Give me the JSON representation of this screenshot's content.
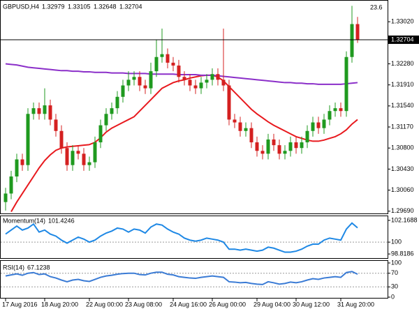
{
  "chart_data": [
    {
      "type": "candlestick",
      "title": "GBPUSD,H4",
      "annotation": "23.6",
      "categories": [
        "17 Aug 2016",
        null,
        null,
        null,
        null,
        null,
        null,
        "18 Aug 20:00",
        null,
        null,
        null,
        null,
        null,
        null,
        null,
        "22 Aug 00:00",
        null,
        null,
        null,
        null,
        null,
        null,
        "23 Aug 08:00",
        null,
        null,
        null,
        null,
        null,
        null,
        null,
        "24 Aug 16:00",
        null,
        null,
        null,
        null,
        null,
        null,
        "26 Aug 00:00",
        null,
        null,
        null,
        null,
        null,
        null,
        null,
        "29 Aug 04:00",
        null,
        null,
        null,
        null,
        null,
        null,
        "30 Aug 12:00",
        null,
        null,
        null,
        null,
        null,
        null,
        null,
        "31 Aug 20:00",
        null,
        null,
        null
      ],
      "open": [
        1.2985,
        1.3,
        1.303,
        1.306,
        1.305,
        1.314,
        1.315,
        1.314,
        1.3155,
        1.313,
        1.311,
        1.308,
        1.305,
        1.3075,
        1.307,
        1.305,
        1.3055,
        1.309,
        1.312,
        1.314,
        1.315,
        1.317,
        1.319,
        1.32,
        1.3205,
        1.319,
        1.3185,
        1.3215,
        1.324,
        1.3245,
        1.323,
        1.3225,
        1.3205,
        1.32,
        1.319,
        1.3185,
        1.3195,
        1.32,
        1.321,
        1.32,
        1.319,
        1.313,
        1.3125,
        1.311,
        1.3115,
        1.309,
        1.3075,
        1.307,
        1.3095,
        1.3085,
        1.307,
        1.3075,
        1.309,
        1.308,
        1.309,
        1.311,
        1.3125,
        1.3115,
        1.313,
        1.3145,
        1.315,
        1.3145,
        1.324,
        1.32979
      ],
      "high": [
        1.301,
        1.304,
        1.307,
        1.307,
        1.315,
        1.316,
        1.316,
        1.3185,
        1.3165,
        1.314,
        1.312,
        1.309,
        1.3085,
        1.3085,
        1.308,
        1.3065,
        1.31,
        1.313,
        1.315,
        1.316,
        1.318,
        1.32,
        1.3215,
        1.3215,
        1.3215,
        1.32,
        1.323,
        1.327,
        1.329,
        1.3255,
        1.324,
        1.3235,
        1.3215,
        1.321,
        1.32,
        1.3205,
        1.321,
        1.322,
        1.322,
        1.329,
        1.32,
        1.314,
        1.3135,
        1.3125,
        1.3125,
        1.31,
        1.3085,
        1.3105,
        1.3105,
        1.3095,
        1.3085,
        1.31,
        1.31,
        1.31,
        1.312,
        1.3135,
        1.3135,
        1.314,
        1.3155,
        1.316,
        1.316,
        1.325,
        1.333,
        1.33105
      ],
      "low": [
        1.297,
        1.299,
        1.302,
        1.304,
        1.304,
        1.313,
        1.313,
        1.313,
        1.312,
        1.31,
        1.307,
        1.304,
        1.304,
        1.306,
        1.304,
        1.304,
        1.3045,
        1.308,
        1.311,
        1.313,
        1.314,
        1.316,
        1.318,
        1.319,
        1.318,
        1.3175,
        1.3175,
        1.3205,
        1.323,
        1.322,
        1.3215,
        1.3195,
        1.319,
        1.318,
        1.3175,
        1.3175,
        1.3185,
        1.319,
        1.319,
        1.318,
        1.312,
        1.3115,
        1.31,
        1.31,
        1.308,
        1.3065,
        1.306,
        1.306,
        1.3075,
        1.306,
        1.306,
        1.3065,
        1.307,
        1.307,
        1.308,
        1.31,
        1.3105,
        1.3105,
        1.312,
        1.3135,
        1.3135,
        1.3135,
        1.323,
        1.32648
      ],
      "close": [
        1.3,
        1.303,
        1.306,
        1.305,
        1.314,
        1.315,
        1.314,
        1.3155,
        1.313,
        1.311,
        1.308,
        1.305,
        1.3075,
        1.307,
        1.305,
        1.3055,
        1.309,
        1.312,
        1.314,
        1.315,
        1.317,
        1.319,
        1.32,
        1.3205,
        1.319,
        1.3185,
        1.3215,
        1.324,
        1.3245,
        1.323,
        1.3225,
        1.3205,
        1.32,
        1.319,
        1.3185,
        1.3195,
        1.32,
        1.321,
        1.32,
        1.319,
        1.313,
        1.3125,
        1.311,
        1.3115,
        1.309,
        1.3075,
        1.307,
        1.3095,
        1.3085,
        1.307,
        1.3075,
        1.309,
        1.308,
        1.309,
        1.311,
        1.3125,
        1.3115,
        1.313,
        1.3145,
        1.315,
        1.3145,
        1.324,
        1.32979,
        1.32704
      ],
      "up_color": "#1f9a1f",
      "down_color": "#d42020",
      "series": [
        {
          "color": "#e8191e",
          "values": [
            null,
            1.2968,
            1.2985,
            1.3,
            1.3015,
            1.303,
            1.3045,
            1.3058,
            1.3068,
            1.3076,
            1.308,
            1.3082,
            1.3083,
            1.3084,
            1.3085,
            1.3086,
            1.309,
            1.3098,
            1.3108,
            1.3115,
            1.312,
            1.3125,
            1.313,
            1.3135,
            1.3145,
            1.3155,
            1.3165,
            1.3175,
            1.3185,
            1.319,
            1.3195,
            1.3198,
            1.32,
            1.3203,
            1.3205,
            1.3207,
            1.3208,
            1.3208,
            1.3205,
            1.3198,
            1.3188,
            1.3178,
            1.3168,
            1.3158,
            1.3148,
            1.314,
            1.3133,
            1.3126,
            1.312,
            1.3115,
            1.311,
            1.3105,
            1.31,
            1.3097,
            1.3094,
            1.3092,
            1.3092,
            1.3094,
            1.3097,
            1.31,
            1.3105,
            1.3112,
            1.3122,
            1.313
          ]
        },
        {
          "color": "#8b2fc9",
          "values": [
            1.3228,
            1.3227,
            1.3226,
            1.3224,
            1.3222,
            1.3221,
            1.322,
            1.3219,
            1.3218,
            1.3217,
            1.3216,
            1.3216,
            1.3215,
            1.3215,
            1.3214,
            1.3214,
            1.3213,
            1.3213,
            1.3213,
            1.3212,
            1.3212,
            1.3212,
            1.3211,
            1.3211,
            1.3211,
            1.3211,
            1.321,
            1.321,
            1.321,
            1.321,
            1.321,
            1.3209,
            1.3209,
            1.3209,
            1.3209,
            1.3208,
            1.3208,
            1.3208,
            1.3207,
            1.3206,
            1.3205,
            1.3204,
            1.3203,
            1.3202,
            1.3201,
            1.32,
            1.3199,
            1.3198,
            1.3197,
            1.3196,
            1.3195,
            1.3195,
            1.3194,
            1.3194,
            1.3193,
            1.3193,
            1.3192,
            1.3192,
            1.3192,
            1.3192,
            1.3192,
            1.3193,
            1.3194,
            1.3195
          ]
        }
      ],
      "ylim": [
        1.2965,
        1.3339
      ],
      "yticks": [
        {
          "value": 1.3302,
          "label": "1.33020"
        },
        {
          "value": 1.3228,
          "label": "1.32280"
        },
        {
          "value": 1.3191,
          "label": "1.31910"
        },
        {
          "value": 1.3154,
          "label": "1.31540"
        },
        {
          "value": 1.3117,
          "label": "1.31170"
        },
        {
          "value": 1.308,
          "label": "1.30800"
        },
        {
          "value": 1.3043,
          "label": "1.30430"
        },
        {
          "value": 1.3006,
          "label": "1.30060"
        },
        {
          "value": 1.2969,
          "label": "1.29690"
        }
      ]
    },
    {
      "type": "line",
      "title": "Momentum(14)",
      "color": "#1e88e5",
      "values": [
        100.8,
        101.2,
        101.6,
        101.2,
        101.4,
        101.8,
        101.0,
        101.2,
        100.8,
        100.6,
        100.2,
        99.9,
        100.2,
        100.5,
        100.3,
        100.0,
        100.2,
        100.6,
        100.9,
        101.1,
        101.4,
        101.3,
        101.0,
        101.3,
        101.2,
        100.9,
        101.5,
        101.8,
        101.7,
        101.3,
        101.0,
        100.8,
        100.4,
        100.2,
        100.1,
        100.2,
        100.4,
        100.3,
        100.2,
        100.0,
        99.3,
        99.3,
        99.2,
        99.3,
        99.2,
        99.1,
        99.2,
        99.5,
        99.4,
        99.2,
        99.0,
        99.0,
        99.1,
        99.3,
        99.6,
        99.8,
        99.8,
        100.2,
        100.4,
        100.3,
        100.2,
        101.3,
        101.9,
        101.4246
      ],
      "ylim": [
        98.41,
        102.58
      ],
      "yticks": [
        102.1688,
        100,
        98.8186
      ],
      "dotted_levels": [
        100
      ]
    },
    {
      "type": "line",
      "title": "RSI(14)",
      "color": "#3a7bd5",
      "values": [
        62,
        65,
        68,
        64,
        70,
        72,
        66,
        68,
        60,
        56,
        50,
        45,
        50,
        52,
        48,
        46,
        52,
        58,
        62,
        64,
        67,
        69,
        70,
        70,
        66,
        65,
        70,
        73,
        73,
        67,
        65,
        60,
        58,
        56,
        55,
        58,
        60,
        62,
        60,
        58,
        45,
        44,
        42,
        43,
        40,
        38,
        37,
        45,
        42,
        38,
        40,
        44,
        42,
        45,
        50,
        54,
        52,
        56,
        58,
        60,
        58,
        72,
        75,
        67.1238
      ],
      "ylim": [
        0,
        100
      ],
      "yticks": [
        100,
        70,
        30,
        0
      ],
      "dotted_levels": [
        70,
        30
      ]
    }
  ]
}
